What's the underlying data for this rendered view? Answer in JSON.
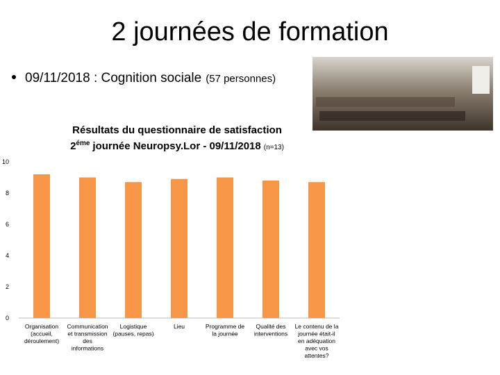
{
  "slide": {
    "title": "2 journées de formation",
    "bullet": {
      "text": "09/11/2018 : Cognition sociale",
      "note": "(57 personnes)"
    }
  },
  "chart_data": {
    "type": "bar",
    "title": "Résultats du questionnaire de satisfaction",
    "subtitle": {
      "number": "2",
      "superscript": "éme",
      "text": "journée Neuropsy.Lor - 09/11/2018",
      "note": "(n=13)"
    },
    "categories": [
      [
        "Organisation",
        "(accueil,",
        "déroulement)"
      ],
      [
        "Communication",
        "et transmission",
        "des",
        "informations"
      ],
      [
        "Logistique",
        "(pauses, repas)"
      ],
      [
        "Lieu"
      ],
      [
        "Programme de",
        "la journée"
      ],
      [
        "Qualité des",
        "interventions"
      ],
      [
        "Le contenu de la",
        "journée était-il",
        "en adéquation",
        "avec vos",
        "attentes?"
      ]
    ],
    "values": [
      9.2,
      9.0,
      8.7,
      8.9,
      9.0,
      8.8,
      8.7
    ],
    "color": "#f79646",
    "ylim": [
      0,
      10
    ],
    "yticks": [
      0,
      2,
      4,
      6,
      8,
      10
    ],
    "grid": false
  }
}
